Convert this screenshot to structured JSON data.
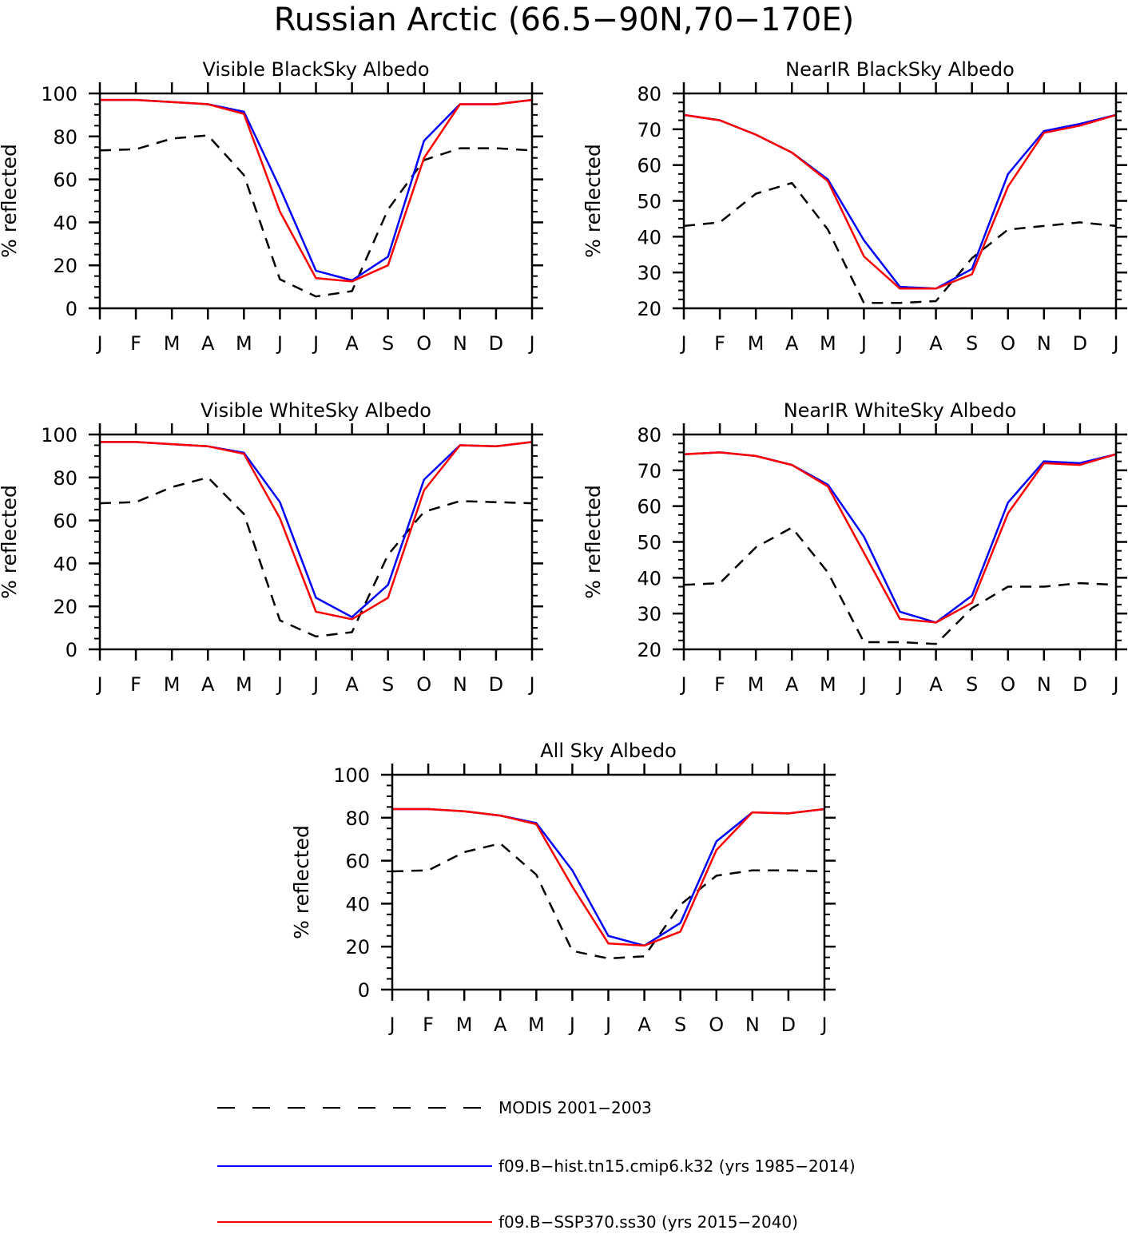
{
  "figure": {
    "title": "Russian Arctic (66.5−90N,70−170E)"
  },
  "legend": [
    {
      "label": "MODIS 2001−2003",
      "color": "#000000",
      "style": "dashed"
    },
    {
      "label": "f09.B−hist.tn15.cmip6.k32 (yrs 1985−2014)",
      "color": "#0000ff",
      "style": "solid"
    },
    {
      "label": "f09.B−SSP370.ss30 (yrs 2015−2040)",
      "color": "#ff0000",
      "style": "solid"
    }
  ],
  "chart_data": [
    {
      "type": "line",
      "title": "Visible BlackSky Albedo",
      "ylabel": "% reflected",
      "xlabel": "",
      "categories": [
        "J",
        "F",
        "M",
        "A",
        "M",
        "J",
        "J",
        "A",
        "S",
        "O",
        "N",
        "D",
        "J"
      ],
      "ylim": [
        0,
        100
      ],
      "yticks": [
        0,
        20,
        40,
        60,
        80,
        100
      ],
      "series": [
        {
          "name": "MODIS 2001−2003",
          "color": "#000000",
          "style": "dashed",
          "values": [
            73.5,
            74,
            79,
            80.5,
            62,
            13.5,
            5.5,
            8,
            46,
            69,
            74.5,
            74.5,
            73.5
          ]
        },
        {
          "name": "f09.B−hist.tn15.cmip6.k32 (yrs 1985−2014)",
          "color": "#0000ff",
          "style": "solid",
          "values": [
            97,
            97,
            96,
            95,
            91.5,
            56,
            17.5,
            13,
            24,
            78,
            95,
            95,
            97
          ]
        },
        {
          "name": "f09.B−SSP370.ss30 (yrs 2015−2040)",
          "color": "#ff0000",
          "style": "solid",
          "values": [
            97,
            97,
            96,
            95,
            90.5,
            45,
            14,
            12.5,
            20,
            70,
            95,
            95,
            97
          ]
        }
      ]
    },
    {
      "type": "line",
      "title": "NearIR BlackSky Albedo",
      "ylabel": "% reflected",
      "xlabel": "",
      "categories": [
        "J",
        "F",
        "M",
        "A",
        "M",
        "J",
        "J",
        "A",
        "S",
        "O",
        "N",
        "D",
        "J"
      ],
      "ylim": [
        20,
        80
      ],
      "yticks": [
        20,
        30,
        40,
        50,
        60,
        70,
        80
      ],
      "series": [
        {
          "name": "MODIS 2001−2003",
          "color": "#000000",
          "style": "dashed",
          "values": [
            43,
            44,
            52,
            55,
            42,
            21.5,
            21.5,
            22,
            34,
            42,
            43,
            44,
            43
          ]
        },
        {
          "name": "f09.B−hist.tn15.cmip6.k32 (yrs 1985−2014)",
          "color": "#0000ff",
          "style": "solid",
          "values": [
            74,
            72.5,
            68.5,
            63.5,
            56,
            39,
            26,
            25.5,
            31,
            57.5,
            69.5,
            71.5,
            74
          ]
        },
        {
          "name": "f09.B−SSP370.ss30 (yrs 2015−2040)",
          "color": "#ff0000",
          "style": "solid",
          "values": [
            74,
            72.5,
            68.5,
            63.5,
            55.5,
            34.5,
            25.5,
            25.5,
            29.5,
            54,
            69,
            71,
            74
          ]
        }
      ]
    },
    {
      "type": "line",
      "title": "Visible WhiteSky Albedo",
      "ylabel": "% reflected",
      "xlabel": "",
      "categories": [
        "J",
        "F",
        "M",
        "A",
        "M",
        "J",
        "J",
        "A",
        "S",
        "O",
        "N",
        "D",
        "J"
      ],
      "ylim": [
        0,
        100
      ],
      "yticks": [
        0,
        20,
        40,
        60,
        80,
        100
      ],
      "series": [
        {
          "name": "MODIS 2001−2003",
          "color": "#000000",
          "style": "dashed",
          "values": [
            68,
            68.5,
            75.5,
            80,
            63,
            13.5,
            6,
            8,
            44,
            64,
            69,
            68.5,
            68
          ]
        },
        {
          "name": "f09.B−hist.tn15.cmip6.k32 (yrs 1985−2014)",
          "color": "#0000ff",
          "style": "solid",
          "values": [
            96.5,
            96.5,
            95.5,
            94.5,
            91.5,
            68.5,
            24,
            15,
            30,
            79,
            95,
            94.5,
            96.5
          ]
        },
        {
          "name": "f09.B−SSP370.ss30 (yrs 2015−2040)",
          "color": "#ff0000",
          "style": "solid",
          "values": [
            96.5,
            96.5,
            95.5,
            94.5,
            91,
            61,
            17.5,
            14,
            24,
            74,
            95,
            94.5,
            96.5
          ]
        }
      ]
    },
    {
      "type": "line",
      "title": "NearIR WhiteSky Albedo",
      "ylabel": "% reflected",
      "xlabel": "",
      "categories": [
        "J",
        "F",
        "M",
        "A",
        "M",
        "J",
        "J",
        "A",
        "S",
        "O",
        "N",
        "D",
        "J"
      ],
      "ylim": [
        20,
        80
      ],
      "yticks": [
        20,
        30,
        40,
        50,
        60,
        70,
        80
      ],
      "series": [
        {
          "name": "MODIS 2001−2003",
          "color": "#000000",
          "style": "dashed",
          "values": [
            38,
            38.5,
            48.5,
            54,
            41.5,
            22,
            22,
            21.5,
            31.5,
            37.5,
            37.5,
            38.5,
            38
          ]
        },
        {
          "name": "f09.B−hist.tn15.cmip6.k32 (yrs 1985−2014)",
          "color": "#0000ff",
          "style": "solid",
          "values": [
            74.5,
            75,
            74,
            71.5,
            66,
            51.5,
            30.5,
            27.5,
            35,
            61,
            72.5,
            72,
            74.5
          ]
        },
        {
          "name": "f09.B−SSP370.ss30 (yrs 2015−2040)",
          "color": "#ff0000",
          "style": "solid",
          "values": [
            74.5,
            75,
            74,
            71.5,
            65.5,
            47,
            28.5,
            27.5,
            33,
            58,
            72,
            71.5,
            74.5
          ]
        }
      ]
    },
    {
      "type": "line",
      "title": "All Sky Albedo",
      "ylabel": "% reflected",
      "xlabel": "",
      "categories": [
        "J",
        "F",
        "M",
        "A",
        "M",
        "J",
        "J",
        "A",
        "S",
        "O",
        "N",
        "D",
        "J"
      ],
      "ylim": [
        0,
        100
      ],
      "yticks": [
        0,
        20,
        40,
        60,
        80,
        100
      ],
      "series": [
        {
          "name": "MODIS 2001−2003",
          "color": "#000000",
          "style": "dashed",
          "values": [
            55,
            55.5,
            64,
            68,
            53.5,
            18,
            14.5,
            15.5,
            39.5,
            53,
            55.5,
            55.5,
            55
          ]
        },
        {
          "name": "f09.B−hist.tn15.cmip6.k32 (yrs 1985−2014)",
          "color": "#0000ff",
          "style": "solid",
          "values": [
            84,
            84,
            83,
            81,
            77.5,
            55.5,
            25,
            20.5,
            31,
            69,
            82.5,
            82,
            84
          ]
        },
        {
          "name": "f09.B−SSP370.ss30 (yrs 2015−2040)",
          "color": "#ff0000",
          "style": "solid",
          "values": [
            84,
            84,
            83,
            81,
            77,
            48,
            21.5,
            20.5,
            27,
            65,
            82.5,
            82,
            84
          ]
        }
      ]
    }
  ]
}
